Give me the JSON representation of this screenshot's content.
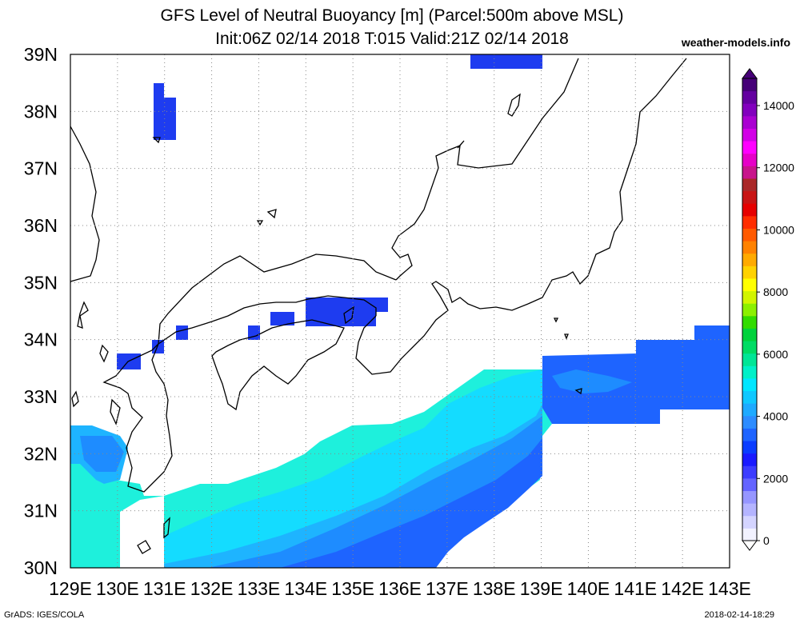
{
  "title": "GFS Level of Neutral Buoyancy [m] (Parcel:500m above MSL)",
  "subtitle": "Init:06Z 02/14 2018 T:015 Valid:21Z 02/14 2018",
  "site": "weather-models.info",
  "footer_left": "GrADS: IGES/COLA",
  "footer_right": "2018-02-14-18:29",
  "lon_labels": [
    "129E",
    "130E",
    "131E",
    "132E",
    "133E",
    "134E",
    "135E",
    "136E",
    "137E",
    "138E",
    "139E",
    "140E",
    "141E",
    "142E",
    "143E"
  ],
  "lat_labels": [
    "39N",
    "38N",
    "37N",
    "36N",
    "35N",
    "34N",
    "33N",
    "32N",
    "31N",
    "30N"
  ],
  "colorbar": {
    "labels": [
      "14000",
      "12000",
      "10000",
      "8000",
      "6000",
      "4000",
      "2000",
      "0"
    ],
    "colors": [
      "#f2f2ff",
      "#d4d4ff",
      "#b4b4ff",
      "#9696ff",
      "#6464ff",
      "#3c3cff",
      "#1a1aff",
      "#0a3cff",
      "#1e64ff",
      "#2d8cff",
      "#1eaaff",
      "#0fc8ff",
      "#00e6ff",
      "#00f0c8",
      "#00e696",
      "#00dc64",
      "#00d23c",
      "#32dc00",
      "#8cf000",
      "#d2f500",
      "#ffff00",
      "#ffd200",
      "#ffaa00",
      "#ff8200",
      "#ff5a00",
      "#ff2d00",
      "#e60000",
      "#c81414",
      "#aa2828",
      "#c8148c",
      "#e600c8",
      "#ff00ff",
      "#d200e6",
      "#aa00d2",
      "#8200be",
      "#6400a0",
      "#460078"
    ]
  },
  "field_colors": {
    "c1500": "#1e3cf0",
    "c2000": "#1e64ff",
    "c2500": "#1e8cff",
    "c3000": "#1eb4ff",
    "c3500": "#14dcff",
    "c4000": "#1ef0dc"
  }
}
